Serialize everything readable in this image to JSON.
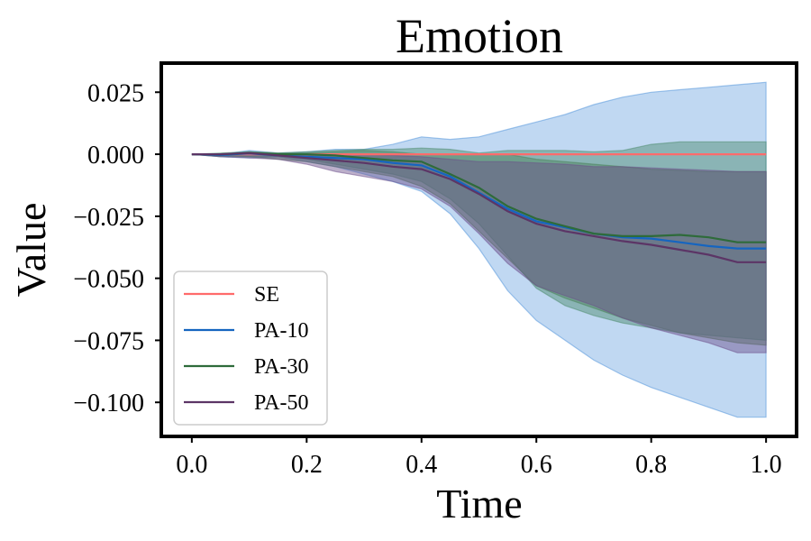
{
  "chart_data": {
    "type": "line",
    "title": "Emotion",
    "xlabel": "Time",
    "ylabel": "Value",
    "xlim": [
      -0.05,
      1.05
    ],
    "ylim": [
      -0.113,
      0.036
    ],
    "xticks": [
      0.0,
      0.2,
      0.4,
      0.6,
      0.8,
      1.0
    ],
    "xtick_labels": [
      "0.0",
      "0.2",
      "0.4",
      "0.6",
      "0.8",
      "1.0"
    ],
    "yticks": [
      0.025,
      0.0,
      -0.025,
      -0.05,
      -0.075,
      -0.1
    ],
    "ytick_labels": [
      "0.025",
      "0.000",
      "−0.025",
      "−0.050",
      "−0.075",
      "−0.100"
    ],
    "grid": false,
    "legend_position": "lower-left",
    "x": [
      0.0,
      0.05,
      0.1,
      0.15,
      0.2,
      0.25,
      0.3,
      0.35,
      0.4,
      0.45,
      0.5,
      0.55,
      0.6,
      0.65,
      0.7,
      0.75,
      0.8,
      0.85,
      0.9,
      0.95,
      1.0
    ],
    "series": [
      {
        "name": "SE",
        "color": "#ff6b6b",
        "values": [
          0,
          0,
          0,
          0,
          0,
          0,
          0,
          0,
          0,
          0,
          0,
          0,
          0,
          0,
          0,
          0,
          0,
          0,
          0,
          0,
          0
        ],
        "band_upper": [
          0,
          0,
          0.0015,
          0.0005,
          0.001,
          0.002,
          0.002,
          0.004,
          0.007,
          0.006,
          0.007,
          0.01,
          0.013,
          0.016,
          0.02,
          0.023,
          0.025,
          0.026,
          0.027,
          0.028,
          0.029
        ],
        "band_lower": [
          0,
          -0.001,
          -0.0015,
          -0.001,
          -0.003,
          -0.005,
          -0.008,
          -0.011,
          -0.015,
          -0.024,
          -0.038,
          -0.055,
          -0.067,
          -0.075,
          -0.083,
          -0.089,
          -0.094,
          -0.098,
          -0.102,
          -0.106,
          -0.106
        ],
        "band_color": "#4a90d9"
      },
      {
        "name": "PA-10",
        "color": "#1565c0",
        "values": [
          0,
          -0.0003,
          0.0003,
          -0.0005,
          -0.001,
          -0.0015,
          -0.002,
          -0.0035,
          -0.0045,
          -0.009,
          -0.0155,
          -0.022,
          -0.027,
          -0.0295,
          -0.032,
          -0.0335,
          -0.034,
          -0.0355,
          -0.037,
          -0.038,
          -0.038
        ],
        "band_upper": [
          0,
          0,
          0.001,
          0.0005,
          0.0005,
          0.001,
          0.0015,
          0.001,
          0.0,
          0.0,
          0.0,
          0.0,
          -0.002,
          -0.003,
          -0.004,
          -0.005,
          -0.006,
          -0.0065,
          -0.007,
          -0.007,
          -0.007
        ],
        "band_lower": [
          0,
          -0.001,
          -0.001,
          -0.002,
          -0.003,
          -0.005,
          -0.007,
          -0.009,
          -0.013,
          -0.02,
          -0.031,
          -0.042,
          -0.053,
          -0.058,
          -0.062,
          -0.066,
          -0.069,
          -0.072,
          -0.074,
          -0.076,
          -0.077
        ],
        "band_color": "#4a7a4a"
      },
      {
        "name": "PA-30",
        "color": "#2e6b3a",
        "values": [
          0,
          0,
          0.0005,
          0,
          0,
          -0.0005,
          -0.0015,
          -0.0025,
          -0.003,
          -0.008,
          -0.0135,
          -0.021,
          -0.026,
          -0.029,
          -0.032,
          -0.033,
          -0.033,
          -0.0325,
          -0.0335,
          -0.0355,
          -0.0355
        ],
        "band_upper": [
          0,
          0.0005,
          0.001,
          0.0005,
          0.001,
          0.0015,
          0.002,
          0.002,
          0.0025,
          0.002,
          0.0005,
          0.0015,
          0.0015,
          0.0015,
          0.001,
          0.0015,
          0.004,
          0.005,
          0.005,
          0.005,
          0.005
        ],
        "band_lower": [
          0,
          -0.0005,
          -0.001,
          -0.001,
          -0.002,
          -0.004,
          -0.006,
          -0.008,
          -0.011,
          -0.018,
          -0.028,
          -0.041,
          -0.054,
          -0.061,
          -0.065,
          -0.068,
          -0.07,
          -0.072,
          -0.073,
          -0.074,
          -0.075
        ],
        "band_color": "#4a8a6a"
      },
      {
        "name": "PA-50",
        "color": "#5c3566",
        "values": [
          0,
          0,
          0.0005,
          -0.0005,
          -0.0015,
          -0.0025,
          -0.0035,
          -0.005,
          -0.006,
          -0.01,
          -0.016,
          -0.023,
          -0.028,
          -0.031,
          -0.033,
          -0.035,
          -0.0365,
          -0.0385,
          -0.0405,
          -0.0435,
          -0.0435
        ],
        "band_upper": [
          0,
          0,
          0.0005,
          0.0,
          -0.0005,
          0.0,
          0.0,
          -0.0005,
          -0.001,
          -0.002,
          -0.003,
          -0.003,
          -0.0035,
          -0.004,
          -0.005,
          -0.005,
          -0.0055,
          -0.006,
          -0.0065,
          -0.007,
          -0.007
        ],
        "band_lower": [
          0,
          -0.001,
          -0.0015,
          -0.002,
          -0.004,
          -0.007,
          -0.009,
          -0.011,
          -0.014,
          -0.021,
          -0.032,
          -0.044,
          -0.053,
          -0.057,
          -0.061,
          -0.066,
          -0.07,
          -0.073,
          -0.076,
          -0.08,
          -0.08
        ],
        "band_color": "#6b4e8a"
      }
    ]
  }
}
